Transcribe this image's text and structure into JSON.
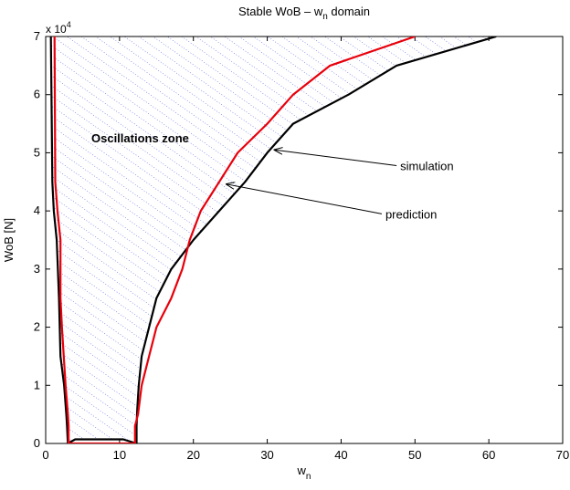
{
  "chart_data": {
    "type": "line",
    "title_main": "Stable WoB – w",
    "title_sub": "n",
    "title_tail": " domain",
    "xlabel_main": "w",
    "xlabel_sub": "n",
    "ylabel": "WoB [N]",
    "xlim": [
      0,
      70
    ],
    "ylim": [
      0,
      70000
    ],
    "x_ticks": [
      0,
      10,
      20,
      30,
      40,
      50,
      60,
      70
    ],
    "y_ticks": [
      0,
      10000,
      20000,
      30000,
      40000,
      50000,
      60000,
      70000
    ],
    "y_tick_labels": [
      "0",
      "1",
      "2",
      "3",
      "4",
      "5",
      "6",
      "7"
    ],
    "y_exponent_base": "x 10",
    "y_exponent_power": "4",
    "grid": false,
    "zone_label": "Oscillations zone",
    "colors": {
      "simulation": "#000000",
      "prediction": "#e8000b",
      "hatch": "#2b3bd8"
    },
    "series": [
      {
        "name": "simulation",
        "x": [
          0.7,
          0.9,
          1.1,
          1.5,
          1.8,
          2.0,
          2.5,
          2.8,
          2.9,
          3.0,
          4.0,
          10.5,
          12.3,
          12.3,
          12.4,
          12.6,
          13.0,
          14.0,
          15.0,
          17.0,
          20.0,
          23.5,
          27.0,
          30.0,
          33.5,
          41.0,
          47.5,
          61.0
        ],
        "y": [
          70000,
          45000,
          40000,
          35000,
          25000,
          15000,
          10000,
          5000,
          3000,
          0,
          700,
          700,
          0,
          3000,
          6000,
          10000,
          15000,
          20000,
          25000,
          30000,
          35000,
          40000,
          45000,
          50000,
          55000,
          60000,
          65000,
          70000
        ]
      },
      {
        "name": "prediction",
        "x": [
          1.2,
          1.3,
          1.6,
          2.0,
          2.0,
          2.2,
          2.7,
          3.0,
          3.1,
          3.1,
          12.1,
          12.1,
          12.5,
          13.0,
          14.0,
          15.0,
          17.0,
          18.5,
          19.5,
          21.0,
          23.5,
          26.0,
          30.0,
          33.5,
          38.5,
          50.0
        ],
        "y": [
          70000,
          45000,
          40000,
          35000,
          25000,
          20000,
          10000,
          5000,
          3000,
          0,
          0,
          3000,
          5000,
          10000,
          15000,
          20000,
          25000,
          30000,
          35000,
          40000,
          45000,
          50000,
          55000,
          60000,
          65000,
          70000
        ]
      }
    ],
    "annotations": [
      {
        "text": "simulation",
        "arrow_from": [
          48,
          47800
        ],
        "arrow_to": [
          31.0,
          50500
        ]
      },
      {
        "text": "prediction",
        "arrow_from": [
          46,
          39500
        ],
        "arrow_to": [
          24.5,
          44600
        ]
      }
    ]
  }
}
